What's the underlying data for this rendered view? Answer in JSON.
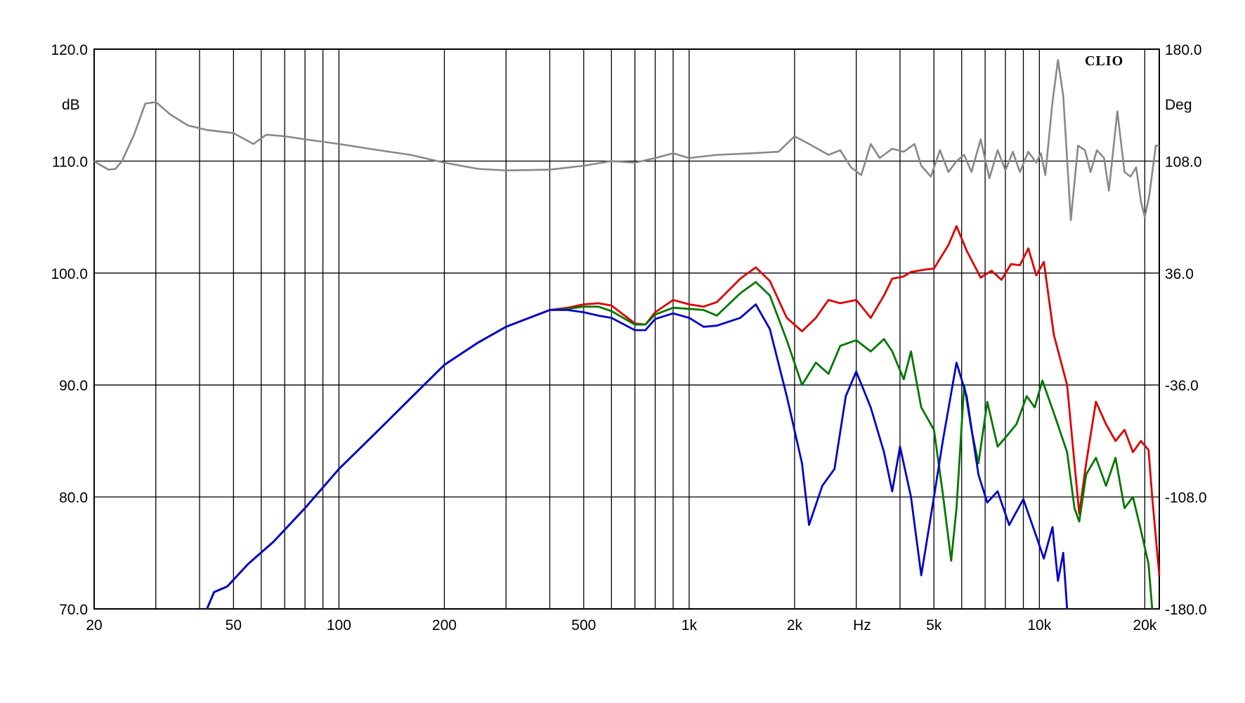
{
  "chart_data": {
    "type": "line",
    "brand": "CLIO",
    "x_unit_label": "Hz",
    "y_left_unit": "dB",
    "y_right_unit": "Deg",
    "x_scale": "log",
    "xlim": [
      20,
      22000
    ],
    "ylim_left": [
      70,
      120
    ],
    "ylim_right": [
      -180,
      180
    ],
    "grid": true,
    "x_ticks": [
      {
        "v": 20,
        "label": "20"
      },
      {
        "v": 50,
        "label": "50"
      },
      {
        "v": 100,
        "label": "100"
      },
      {
        "v": 200,
        "label": "200"
      },
      {
        "v": 500,
        "label": "500"
      },
      {
        "v": 1000,
        "label": "1k"
      },
      {
        "v": 2000,
        "label": "2k"
      },
      {
        "v": 5000,
        "label": "5k"
      },
      {
        "v": 10000,
        "label": "10k"
      },
      {
        "v": 20000,
        "label": "20k"
      }
    ],
    "x_gridlines": [
      20,
      30,
      40,
      50,
      60,
      70,
      80,
      90,
      100,
      200,
      300,
      400,
      500,
      600,
      700,
      800,
      900,
      1000,
      2000,
      3000,
      4000,
      5000,
      6000,
      7000,
      8000,
      9000,
      10000,
      20000
    ],
    "y_left_ticks": [
      "70.0",
      "80.0",
      "90.0",
      "100.0",
      "110.0",
      "120.0"
    ],
    "y_right_ticks": [
      "-180.0",
      "-108.0",
      "-36.0",
      "36.0",
      "108.0",
      "180.0"
    ],
    "series": [
      {
        "color": "#dd0000",
        "axis": "left",
        "points": [
          [
            42,
            70
          ],
          [
            44,
            71.5
          ],
          [
            48,
            72
          ],
          [
            55,
            74
          ],
          [
            65,
            76
          ],
          [
            80,
            79
          ],
          [
            100,
            82.5
          ],
          [
            130,
            86
          ],
          [
            160,
            88.8
          ],
          [
            200,
            91.8
          ],
          [
            250,
            93.8
          ],
          [
            300,
            95.2
          ],
          [
            400,
            96.7
          ],
          [
            450,
            96.9
          ],
          [
            500,
            97.2
          ],
          [
            550,
            97.3
          ],
          [
            600,
            97.1
          ],
          [
            700,
            95.5
          ],
          [
            750,
            95.4
          ],
          [
            800,
            96.5
          ],
          [
            900,
            97.6
          ],
          [
            1000,
            97.2
          ],
          [
            1100,
            97
          ],
          [
            1200,
            97.4
          ],
          [
            1400,
            99.5
          ],
          [
            1550,
            100.5
          ],
          [
            1700,
            99.3
          ],
          [
            1900,
            96
          ],
          [
            2100,
            94.8
          ],
          [
            2300,
            96
          ],
          [
            2500,
            97.6
          ],
          [
            2700,
            97.3
          ],
          [
            3000,
            97.6
          ],
          [
            3300,
            96
          ],
          [
            3600,
            98
          ],
          [
            3800,
            99.5
          ],
          [
            4100,
            99.7
          ],
          [
            4300,
            100.1
          ],
          [
            4700,
            100.3
          ],
          [
            5000,
            100.4
          ],
          [
            5500,
            102.5
          ],
          [
            5800,
            104.2
          ],
          [
            6200,
            102
          ],
          [
            6800,
            99.6
          ],
          [
            7300,
            100.2
          ],
          [
            7800,
            99.4
          ],
          [
            8300,
            100.8
          ],
          [
            8800,
            100.7
          ],
          [
            9300,
            102.2
          ],
          [
            9800,
            99.8
          ],
          [
            10300,
            101
          ],
          [
            11000,
            94.5
          ],
          [
            12000,
            90
          ],
          [
            12600,
            83
          ],
          [
            13000,
            78.5
          ],
          [
            13600,
            83
          ],
          [
            14500,
            88.5
          ],
          [
            15500,
            86.5
          ],
          [
            16500,
            85
          ],
          [
            17500,
            86
          ],
          [
            18500,
            84
          ],
          [
            19500,
            85
          ],
          [
            20500,
            84.2
          ],
          [
            21000,
            80
          ],
          [
            22000,
            73
          ]
        ]
      },
      {
        "color": "#007700",
        "axis": "left",
        "points": [
          [
            42,
            70
          ],
          [
            44,
            71.5
          ],
          [
            48,
            72
          ],
          [
            55,
            74
          ],
          [
            65,
            76
          ],
          [
            80,
            79
          ],
          [
            100,
            82.5
          ],
          [
            130,
            86
          ],
          [
            160,
            88.8
          ],
          [
            200,
            91.8
          ],
          [
            250,
            93.8
          ],
          [
            300,
            95.2
          ],
          [
            400,
            96.7
          ],
          [
            450,
            96.8
          ],
          [
            500,
            97
          ],
          [
            550,
            97
          ],
          [
            600,
            96.6
          ],
          [
            700,
            95.4
          ],
          [
            750,
            95.4
          ],
          [
            800,
            96.3
          ],
          [
            900,
            96.9
          ],
          [
            1000,
            96.8
          ],
          [
            1100,
            96.7
          ],
          [
            1200,
            96.2
          ],
          [
            1400,
            98.2
          ],
          [
            1550,
            99.2
          ],
          [
            1700,
            98
          ],
          [
            1900,
            94
          ],
          [
            2100,
            90
          ],
          [
            2300,
            92
          ],
          [
            2500,
            91
          ],
          [
            2700,
            93.5
          ],
          [
            3000,
            94
          ],
          [
            3300,
            93
          ],
          [
            3600,
            94.1
          ],
          [
            3800,
            93
          ],
          [
            4100,
            90.5
          ],
          [
            4300,
            93
          ],
          [
            4600,
            88
          ],
          [
            5000,
            86
          ],
          [
            5300,
            80.3
          ],
          [
            5600,
            74.3
          ],
          [
            5800,
            79
          ],
          [
            6100,
            90
          ],
          [
            6400,
            86
          ],
          [
            6700,
            83
          ],
          [
            7100,
            88.5
          ],
          [
            7600,
            84.5
          ],
          [
            8100,
            85.5
          ],
          [
            8600,
            86.5
          ],
          [
            9200,
            89
          ],
          [
            9700,
            88
          ],
          [
            10200,
            90.4
          ],
          [
            11000,
            87.5
          ],
          [
            12000,
            84
          ],
          [
            12600,
            79
          ],
          [
            13000,
            77.8
          ],
          [
            13600,
            82
          ],
          [
            14500,
            83.5
          ],
          [
            15500,
            81
          ],
          [
            16500,
            83.5
          ],
          [
            17500,
            79
          ],
          [
            18500,
            80
          ],
          [
            19500,
            77
          ],
          [
            20500,
            74
          ],
          [
            21000,
            70
          ]
        ]
      },
      {
        "color": "#0000cc",
        "axis": "left",
        "points": [
          [
            42,
            70
          ],
          [
            44,
            71.5
          ],
          [
            48,
            72
          ],
          [
            55,
            74
          ],
          [
            65,
            76
          ],
          [
            80,
            79
          ],
          [
            100,
            82.5
          ],
          [
            130,
            86
          ],
          [
            160,
            88.8
          ],
          [
            200,
            91.8
          ],
          [
            250,
            93.8
          ],
          [
            300,
            95.2
          ],
          [
            400,
            96.7
          ],
          [
            450,
            96.7
          ],
          [
            500,
            96.5
          ],
          [
            550,
            96.2
          ],
          [
            600,
            96
          ],
          [
            700,
            94.9
          ],
          [
            750,
            94.9
          ],
          [
            800,
            95.9
          ],
          [
            900,
            96.4
          ],
          [
            1000,
            96
          ],
          [
            1100,
            95.2
          ],
          [
            1200,
            95.3
          ],
          [
            1400,
            96
          ],
          [
            1550,
            97.2
          ],
          [
            1700,
            95
          ],
          [
            1900,
            89
          ],
          [
            2100,
            83
          ],
          [
            2200,
            77.5
          ],
          [
            2400,
            81
          ],
          [
            2600,
            82.5
          ],
          [
            2800,
            89
          ],
          [
            3000,
            91.2
          ],
          [
            3300,
            88
          ],
          [
            3600,
            84
          ],
          [
            3800,
            80.5
          ],
          [
            4000,
            84.5
          ],
          [
            4300,
            80
          ],
          [
            4600,
            73
          ],
          [
            5000,
            80
          ],
          [
            5300,
            85
          ],
          [
            5800,
            92
          ],
          [
            6200,
            89
          ],
          [
            6700,
            82
          ],
          [
            7100,
            79.5
          ],
          [
            7600,
            80.5
          ],
          [
            8200,
            77.5
          ],
          [
            9000,
            79.8
          ],
          [
            9800,
            76.5
          ],
          [
            10300,
            74.5
          ],
          [
            10900,
            77.3
          ],
          [
            11300,
            72.5
          ],
          [
            11700,
            75
          ],
          [
            12000,
            70
          ]
        ]
      },
      {
        "color": "#888888",
        "axis": "right",
        "points": [
          [
            20,
            108
          ],
          [
            21,
            105
          ],
          [
            22,
            102.5
          ],
          [
            23,
            103
          ],
          [
            24,
            108
          ],
          [
            26,
            125
          ],
          [
            28,
            145
          ],
          [
            30,
            146
          ],
          [
            33,
            138
          ],
          [
            37,
            131
          ],
          [
            42,
            128
          ],
          [
            50,
            126
          ],
          [
            57,
            119
          ],
          [
            62,
            125
          ],
          [
            70,
            124
          ],
          [
            80,
            122
          ],
          [
            100,
            119
          ],
          [
            130,
            115
          ],
          [
            160,
            112
          ],
          [
            200,
            107
          ],
          [
            250,
            103
          ],
          [
            300,
            102
          ],
          [
            400,
            102.5
          ],
          [
            500,
            105
          ],
          [
            600,
            108
          ],
          [
            700,
            107
          ],
          [
            800,
            110
          ],
          [
            900,
            113
          ],
          [
            1000,
            110
          ],
          [
            1200,
            112
          ],
          [
            1500,
            113
          ],
          [
            1800,
            114
          ],
          [
            2000,
            124
          ],
          [
            2200,
            119
          ],
          [
            2500,
            112
          ],
          [
            2700,
            115
          ],
          [
            2900,
            104
          ],
          [
            3100,
            99
          ],
          [
            3300,
            119
          ],
          [
            3500,
            110
          ],
          [
            3800,
            116
          ],
          [
            4100,
            114
          ],
          [
            4400,
            119
          ],
          [
            4600,
            105
          ],
          [
            4900,
            98
          ],
          [
            5200,
            115
          ],
          [
            5500,
            101
          ],
          [
            5800,
            108
          ],
          [
            6100,
            112
          ],
          [
            6400,
            101
          ],
          [
            6800,
            122
          ],
          [
            7200,
            97
          ],
          [
            7600,
            115
          ],
          [
            8000,
            102
          ],
          [
            8400,
            114
          ],
          [
            8800,
            101
          ],
          [
            9300,
            114
          ],
          [
            9800,
            107
          ],
          [
            10100,
            113
          ],
          [
            10400,
            99
          ],
          [
            10900,
            146
          ],
          [
            11300,
            173
          ],
          [
            11700,
            150
          ],
          [
            12300,
            70
          ],
          [
            12900,
            118
          ],
          [
            13500,
            115
          ],
          [
            14000,
            101
          ],
          [
            14600,
            115
          ],
          [
            15300,
            110
          ],
          [
            15800,
            89
          ],
          [
            16700,
            140
          ],
          [
            17500,
            101
          ],
          [
            18200,
            98
          ],
          [
            18900,
            104
          ],
          [
            19500,
            82
          ],
          [
            20000,
            72
          ],
          [
            20600,
            86
          ],
          [
            21500,
            118
          ],
          [
            22000,
            118
          ]
        ]
      }
    ]
  }
}
